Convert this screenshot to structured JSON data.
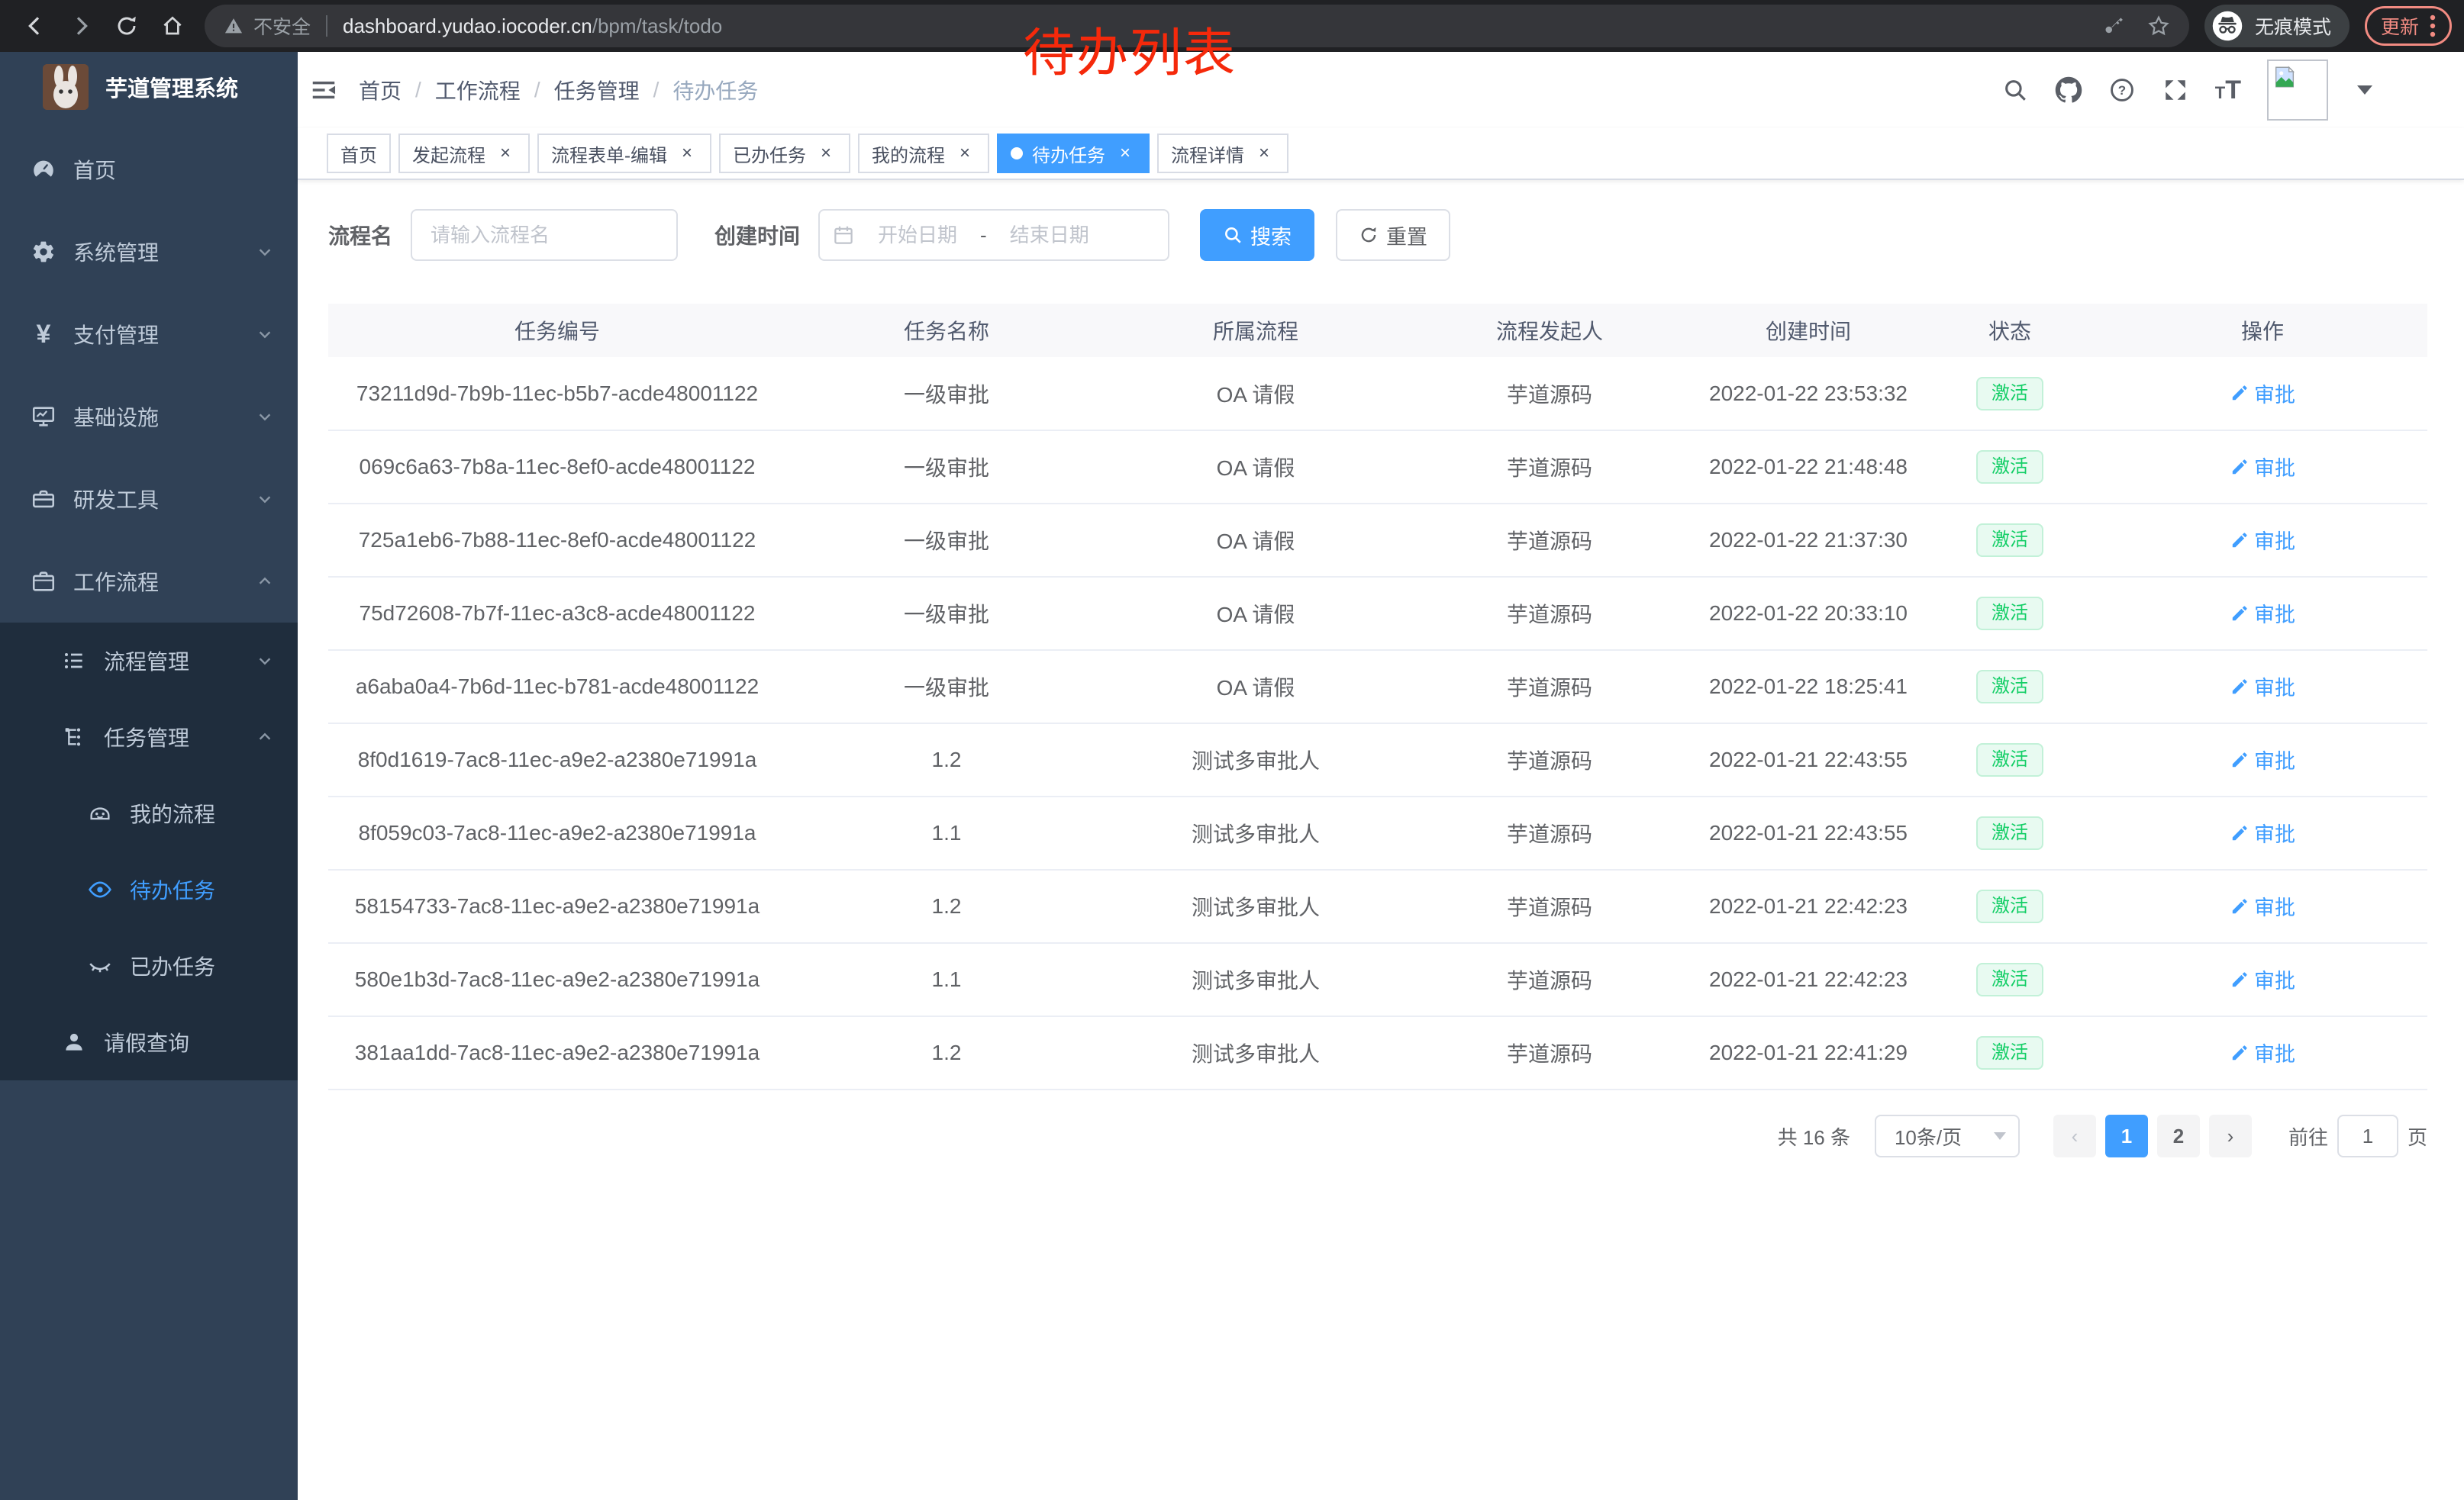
{
  "browser": {
    "security": "不安全",
    "url_host": "dashboard.yudao.iocoder.cn",
    "url_path": "/bpm/task/todo",
    "incognito": "无痕模式",
    "update": "更新"
  },
  "annotation": {
    "text": "待办列表",
    "color": "#f5290b"
  },
  "sidebar": {
    "title": "芋道管理系统",
    "items": [
      {
        "label": "首页",
        "icon": "gauge-icon",
        "level": 1
      },
      {
        "label": "系统管理",
        "icon": "gear-icon",
        "level": 1,
        "chevron": "down"
      },
      {
        "label": "支付管理",
        "icon": "yen-icon",
        "level": 1,
        "chevron": "down"
      },
      {
        "label": "基础设施",
        "icon": "monitor-icon",
        "level": 1,
        "chevron": "down"
      },
      {
        "label": "研发工具",
        "icon": "toolbox-icon",
        "level": 1,
        "chevron": "down"
      },
      {
        "label": "工作流程",
        "icon": "briefcase-icon",
        "level": 1,
        "chevron": "up",
        "open": true
      },
      {
        "label": "流程管理",
        "icon": "flow-list-icon",
        "level": 2,
        "chevron": "down"
      },
      {
        "label": "任务管理",
        "icon": "tree-icon",
        "level": 2,
        "chevron": "up",
        "open": true
      },
      {
        "label": "我的流程",
        "icon": "robot-icon",
        "level": 3
      },
      {
        "label": "待办任务",
        "icon": "eye-open-icon",
        "level": 3,
        "active": true
      },
      {
        "label": "已办任务",
        "icon": "eye-closed-icon",
        "level": 3
      },
      {
        "label": "请假查询",
        "icon": "user-icon",
        "level": 2
      }
    ]
  },
  "header": {
    "breadcrumb": [
      "首页",
      "工作流程",
      "任务管理",
      "待办任务"
    ]
  },
  "tabs": [
    {
      "label": "首页",
      "closable": false,
      "active": false
    },
    {
      "label": "发起流程",
      "closable": true,
      "active": false
    },
    {
      "label": "流程表单-编辑",
      "closable": true,
      "active": false
    },
    {
      "label": "已办任务",
      "closable": true,
      "active": false
    },
    {
      "label": "我的流程",
      "closable": true,
      "active": false
    },
    {
      "label": "待办任务",
      "closable": true,
      "active": true
    },
    {
      "label": "流程详情",
      "closable": true,
      "active": false
    }
  ],
  "filters": {
    "name_label": "流程名",
    "name_placeholder": "请输入流程名",
    "time_label": "创建时间",
    "start_placeholder": "开始日期",
    "range_separator": "-",
    "end_placeholder": "结束日期",
    "search": "搜索",
    "reset": "重置"
  },
  "table": {
    "columns": [
      "任务编号",
      "任务名称",
      "所属流程",
      "流程发起人",
      "创建时间",
      "状态",
      "操作"
    ],
    "status_label": "激活",
    "action_label": "审批",
    "rows": [
      {
        "id": "73211d9d-7b9b-11ec-b5b7-acde48001122",
        "name": "一级审批",
        "process": "OA 请假",
        "starter": "芋道源码",
        "created": "2022-01-22 23:53:32"
      },
      {
        "id": "069c6a63-7b8a-11ec-8ef0-acde48001122",
        "name": "一级审批",
        "process": "OA 请假",
        "starter": "芋道源码",
        "created": "2022-01-22 21:48:48"
      },
      {
        "id": "725a1eb6-7b88-11ec-8ef0-acde48001122",
        "name": "一级审批",
        "process": "OA 请假",
        "starter": "芋道源码",
        "created": "2022-01-22 21:37:30"
      },
      {
        "id": "75d72608-7b7f-11ec-a3c8-acde48001122",
        "name": "一级审批",
        "process": "OA 请假",
        "starter": "芋道源码",
        "created": "2022-01-22 20:33:10"
      },
      {
        "id": "a6aba0a4-7b6d-11ec-b781-acde48001122",
        "name": "一级审批",
        "process": "OA 请假",
        "starter": "芋道源码",
        "created": "2022-01-22 18:25:41"
      },
      {
        "id": "8f0d1619-7ac8-11ec-a9e2-a2380e71991a",
        "name": "1.2",
        "process": "测试多审批人",
        "starter": "芋道源码",
        "created": "2022-01-21 22:43:55"
      },
      {
        "id": "8f059c03-7ac8-11ec-a9e2-a2380e71991a",
        "name": "1.1",
        "process": "测试多审批人",
        "starter": "芋道源码",
        "created": "2022-01-21 22:43:55"
      },
      {
        "id": "58154733-7ac8-11ec-a9e2-a2380e71991a",
        "name": "1.2",
        "process": "测试多审批人",
        "starter": "芋道源码",
        "created": "2022-01-21 22:42:23"
      },
      {
        "id": "580e1b3d-7ac8-11ec-a9e2-a2380e71991a",
        "name": "1.1",
        "process": "测试多审批人",
        "starter": "芋道源码",
        "created": "2022-01-21 22:42:23"
      },
      {
        "id": "381aa1dd-7ac8-11ec-a9e2-a2380e71991a",
        "name": "1.2",
        "process": "测试多审批人",
        "starter": "芋道源码",
        "created": "2022-01-21 22:41:29"
      }
    ]
  },
  "pagination": {
    "total": "共 16 条",
    "page_size": "10条/页",
    "pages": [
      "1",
      "2"
    ],
    "active_page": "1",
    "goto": "前往",
    "goto_value": "1",
    "unit": "页"
  },
  "icons": [
    "back-icon",
    "forward-icon",
    "reload-icon",
    "home-icon",
    "warning-icon",
    "key-icon",
    "star-icon",
    "incognito-icon",
    "kebab-icon",
    "hamburger-icon",
    "search-icon",
    "github-icon",
    "help-icon",
    "fullscreen-icon",
    "font-size-icon",
    "avatar-broken-image-icon",
    "dropdown-caret-icon",
    "calendar-icon",
    "refresh-icon",
    "pencil-icon"
  ],
  "colors": {
    "accent": "#409eff",
    "success": "#13ce66",
    "sidebar": "#304156",
    "submenu": "#1f2d3d",
    "chrome": "#202124"
  }
}
